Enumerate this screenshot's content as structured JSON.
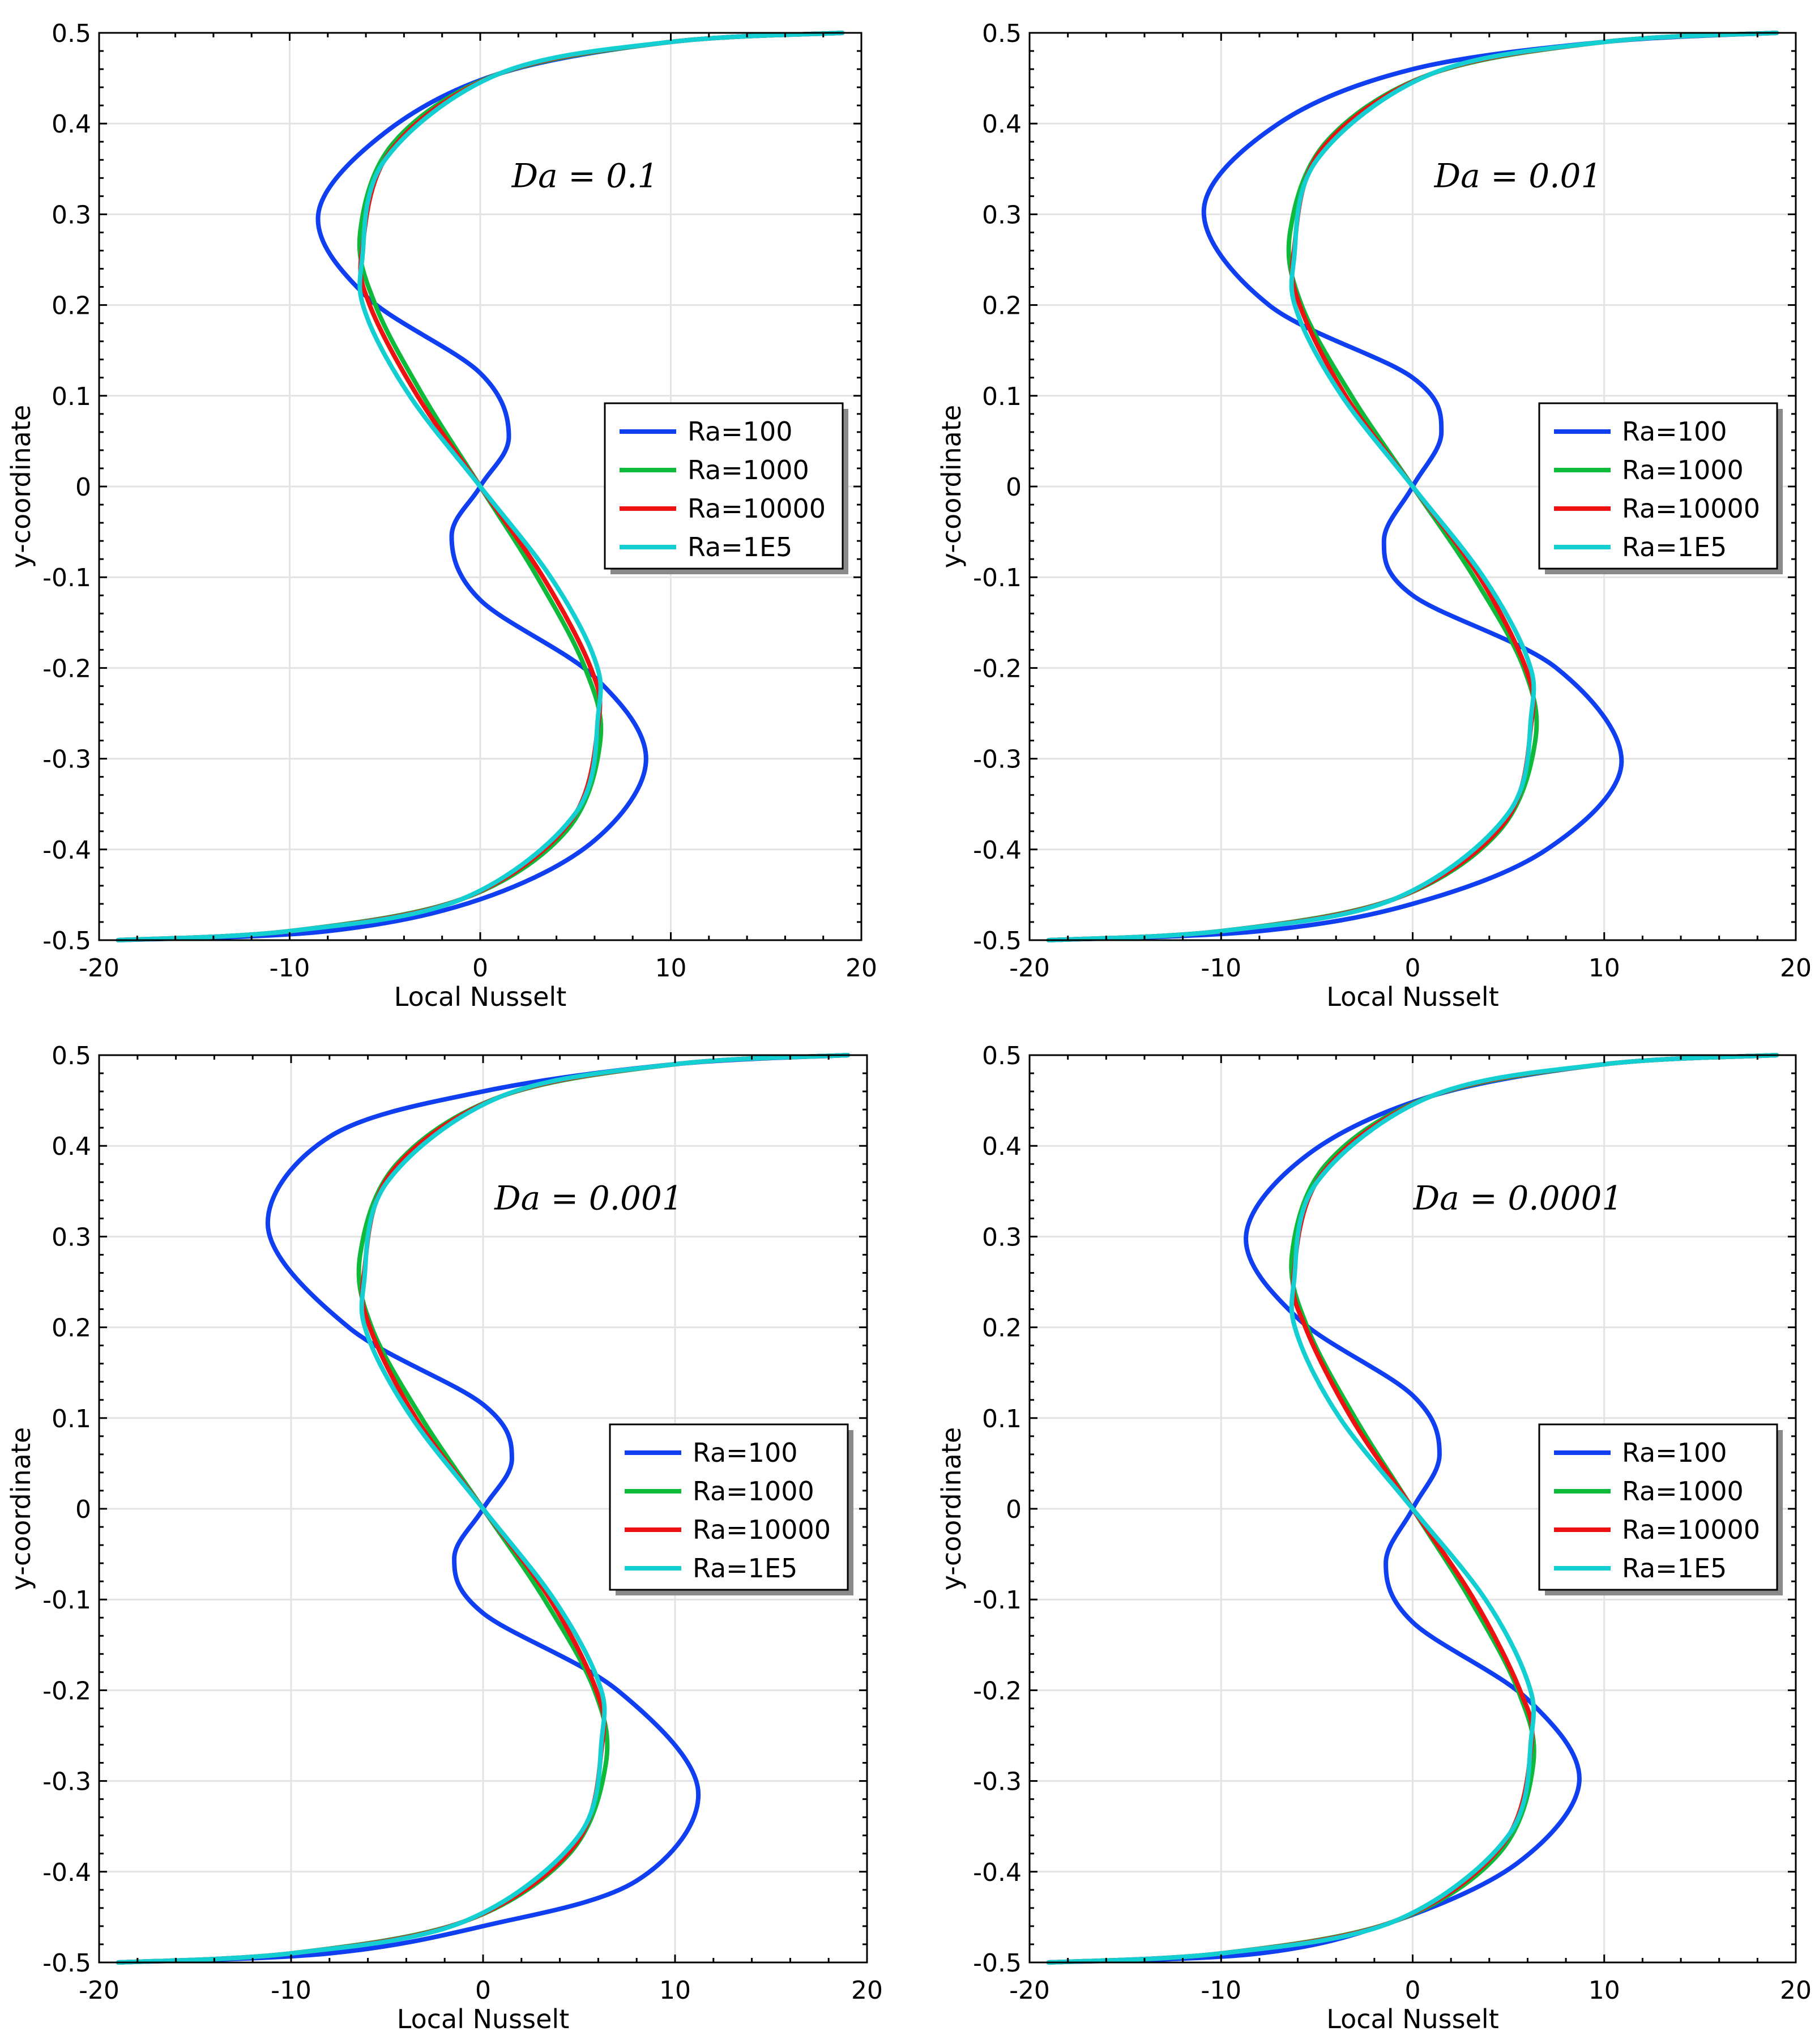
{
  "chart_data": [
    {
      "type": "line",
      "title": "",
      "annotation": "Da = 0.1",
      "xlabel": "Local Nusselt",
      "ylabel": "y-coordinate",
      "xlim": [
        -20,
        20
      ],
      "ylim": [
        -0.5,
        0.5
      ],
      "xticks": [
        "-20",
        "-10",
        "0",
        "10",
        "20"
      ],
      "yticks": [
        "0.5",
        "0.4",
        "0.3",
        "0.2",
        "0.1",
        "0",
        "-0.1",
        "-0.2",
        "-0.3",
        "-0.4",
        "-0.5"
      ],
      "grid": true,
      "legend_position": "right",
      "series": [
        {
          "name": "Ra=100",
          "color": "#0f3ff0",
          "x": [
            19,
            10,
            1,
            -5,
            -8.5,
            -6,
            0,
            1.5,
            0,
            -1.5,
            0,
            6,
            8.7,
            6,
            0,
            -8,
            -19
          ],
          "y": [
            0.5,
            0.49,
            0.455,
            0.39,
            0.3,
            0.21,
            0.125,
            0.055,
            0,
            -0.055,
            -0.125,
            -0.21,
            -0.3,
            -0.39,
            -0.455,
            -0.49,
            -0.5
          ]
        },
        {
          "name": "Ra=1000",
          "color": "#0dba3a",
          "x": [
            19,
            10,
            1,
            -4.5,
            -6.3,
            -5.5,
            -3,
            0,
            3,
            5.5,
            6.3,
            4.5,
            -1,
            -10,
            -19
          ],
          "y": [
            0.5,
            0.49,
            0.455,
            0.38,
            0.28,
            0.2,
            0.1,
            0,
            -0.1,
            -0.2,
            -0.28,
            -0.38,
            -0.455,
            -0.49,
            -0.5
          ]
        },
        {
          "name": "Ra=10000",
          "color": "#ee1111",
          "x": [
            19,
            10,
            1,
            -4.7,
            -6.2,
            -5.8,
            -3.3,
            0,
            3.3,
            5.8,
            6.2,
            4.7,
            -1,
            -10,
            -19
          ],
          "y": [
            0.5,
            0.49,
            0.455,
            0.37,
            0.26,
            0.2,
            0.1,
            0,
            -0.1,
            -0.2,
            -0.26,
            -0.37,
            -0.455,
            -0.49,
            -0.5
          ]
        },
        {
          "name": "Ra=1E5",
          "color": "#13cfd2",
          "x": [
            19,
            10,
            1,
            -5,
            -6.2,
            -6,
            -3.7,
            0,
            3.7,
            6,
            6.2,
            5,
            -1,
            -10,
            -19
          ],
          "y": [
            0.5,
            0.49,
            0.455,
            0.36,
            0.25,
            0.19,
            0.1,
            0,
            -0.1,
            -0.19,
            -0.25,
            -0.36,
            -0.455,
            -0.49,
            -0.5
          ]
        }
      ]
    },
    {
      "type": "line",
      "title": "",
      "annotation": "Da = 0.01",
      "xlabel": "Local Nusselt",
      "ylabel": "y-coordinate",
      "xlim": [
        -20,
        20
      ],
      "ylim": [
        -0.5,
        0.5
      ],
      "xticks": [
        "-20",
        "-10",
        "0",
        "10",
        "20"
      ],
      "yticks": [
        "0.5",
        "0.4",
        "0.3",
        "0.2",
        "0.1",
        "0",
        "-0.1",
        "-0.2",
        "-0.3",
        "-0.4",
        "-0.5"
      ],
      "grid": true,
      "legend_position": "right",
      "series": [
        {
          "name": "Ra=100",
          "color": "#0f3ff0",
          "x": [
            19,
            10,
            0,
            -7,
            -10.9,
            -7.5,
            0,
            1.5,
            0,
            -1.5,
            0,
            7.5,
            10.9,
            7,
            0,
            -8,
            -19
          ],
          "y": [
            0.5,
            0.49,
            0.46,
            0.4,
            0.305,
            0.2,
            0.12,
            0.06,
            0,
            -0.06,
            -0.12,
            -0.2,
            -0.305,
            -0.4,
            -0.46,
            -0.49,
            -0.5
          ]
        },
        {
          "name": "Ra=1000",
          "color": "#0dba3a",
          "x": [
            19,
            10,
            1,
            -4.5,
            -6.4,
            -5.8,
            -3.2,
            0,
            3.2,
            5.8,
            6.4,
            4.5,
            -1,
            -10,
            -19
          ],
          "y": [
            0.5,
            0.49,
            0.455,
            0.38,
            0.28,
            0.2,
            0.1,
            0,
            -0.1,
            -0.2,
            -0.28,
            -0.38,
            -0.455,
            -0.49,
            -0.5
          ]
        },
        {
          "name": "Ra=10000",
          "color": "#ee1111",
          "x": [
            19,
            10,
            1,
            -4.8,
            -6.2,
            -5.9,
            -3.5,
            0,
            3.5,
            5.9,
            6.2,
            4.8,
            -1,
            -10,
            -19
          ],
          "y": [
            0.5,
            0.49,
            0.455,
            0.37,
            0.26,
            0.2,
            0.1,
            0,
            -0.1,
            -0.2,
            -0.26,
            -0.37,
            -0.455,
            -0.49,
            -0.5
          ]
        },
        {
          "name": "Ra=1E5",
          "color": "#13cfd2",
          "x": [
            19,
            10,
            1,
            -5,
            -6.2,
            -6,
            -3.7,
            0,
            3.7,
            6,
            6.2,
            5,
            -1,
            -10,
            -19
          ],
          "y": [
            0.5,
            0.49,
            0.455,
            0.36,
            0.25,
            0.19,
            0.1,
            0,
            -0.1,
            -0.19,
            -0.25,
            -0.36,
            -0.455,
            -0.49,
            -0.5
          ]
        }
      ]
    },
    {
      "type": "line",
      "title": "",
      "annotation": "Da = 0.001",
      "xlabel": "Local Nusselt",
      "ylabel": "y-coordinate",
      "xlim": [
        -20,
        20
      ],
      "ylim": [
        -0.5,
        0.5
      ],
      "xticks": [
        "-20",
        "-10",
        "0",
        "10",
        "20"
      ],
      "yticks": [
        "0.5",
        "0.4",
        "0.3",
        "0.2",
        "0.1",
        "0",
        "-0.1",
        "-0.2",
        "-0.3",
        "-0.4",
        "-0.5"
      ],
      "grid": true,
      "legend_position": "right",
      "series": [
        {
          "name": "Ra=100",
          "color": "#0f3ff0",
          "x": [
            19,
            10,
            0,
            -8,
            -11.2,
            -7,
            0,
            1.5,
            0,
            -1.5,
            0,
            7,
            11.2,
            8,
            0,
            -8,
            -19
          ],
          "y": [
            0.5,
            0.49,
            0.46,
            0.41,
            0.31,
            0.2,
            0.115,
            0.055,
            0,
            -0.055,
            -0.115,
            -0.2,
            -0.31,
            -0.41,
            -0.46,
            -0.49,
            -0.5
          ]
        },
        {
          "name": "Ra=1000",
          "color": "#0dba3a",
          "x": [
            19,
            10,
            1,
            -4.5,
            -6.4,
            -5.8,
            -3.2,
            0,
            3.2,
            5.8,
            6.4,
            4.5,
            -1,
            -10,
            -19
          ],
          "y": [
            0.5,
            0.49,
            0.455,
            0.38,
            0.28,
            0.2,
            0.1,
            0,
            -0.1,
            -0.2,
            -0.28,
            -0.38,
            -0.455,
            -0.49,
            -0.5
          ]
        },
        {
          "name": "Ra=10000",
          "color": "#ee1111",
          "x": [
            19,
            10,
            1,
            -4.8,
            -6.2,
            -5.9,
            -3.5,
            0,
            3.5,
            5.9,
            6.2,
            4.8,
            -1,
            -10,
            -19
          ],
          "y": [
            0.5,
            0.49,
            0.455,
            0.37,
            0.26,
            0.2,
            0.1,
            0,
            -0.1,
            -0.2,
            -0.26,
            -0.37,
            -0.455,
            -0.49,
            -0.5
          ]
        },
        {
          "name": "Ra=1E5",
          "color": "#13cfd2",
          "x": [
            19,
            10,
            1,
            -5,
            -6.2,
            -6,
            -3.7,
            0,
            3.7,
            6,
            6.2,
            5,
            -1,
            -10,
            -19
          ],
          "y": [
            0.5,
            0.49,
            0.455,
            0.36,
            0.25,
            0.19,
            0.1,
            0,
            -0.1,
            -0.19,
            -0.25,
            -0.36,
            -0.455,
            -0.49,
            -0.5
          ]
        }
      ]
    },
    {
      "type": "line",
      "title": "",
      "annotation": "Da = 0.0001",
      "xlabel": "Local Nusselt",
      "ylabel": "y-coordinate",
      "xlim": [
        -20,
        20
      ],
      "ylim": [
        -0.5,
        0.5
      ],
      "xticks": [
        "-20",
        "-10",
        "0",
        "10",
        "20"
      ],
      "yticks": [
        "0.5",
        "0.4",
        "0.3",
        "0.2",
        "0.1",
        "0",
        "-0.1",
        "-0.2",
        "-0.3",
        "-0.4",
        "-0.5"
      ],
      "grid": true,
      "legend_position": "right",
      "series": [
        {
          "name": "Ra=100",
          "color": "#0f3ff0",
          "x": [
            19,
            10,
            1,
            -5.5,
            -8.7,
            -6,
            0,
            1.4,
            0,
            -1.4,
            0,
            6,
            8.7,
            5.5,
            -1,
            -8,
            -19
          ],
          "y": [
            0.5,
            0.49,
            0.455,
            0.39,
            0.3,
            0.21,
            0.125,
            0.06,
            0,
            -0.06,
            -0.125,
            -0.21,
            -0.3,
            -0.39,
            -0.455,
            -0.49,
            -0.5
          ]
        },
        {
          "name": "Ra=1000",
          "color": "#0dba3a",
          "x": [
            19,
            10,
            1,
            -4.5,
            -6.3,
            -5.5,
            -3,
            0,
            3,
            5.5,
            6.3,
            4.5,
            -1,
            -10,
            -19
          ],
          "y": [
            0.5,
            0.49,
            0.455,
            0.38,
            0.28,
            0.2,
            0.1,
            0,
            -0.1,
            -0.2,
            -0.28,
            -0.38,
            -0.455,
            -0.49,
            -0.5
          ]
        },
        {
          "name": "Ra=10000",
          "color": "#ee1111",
          "x": [
            19,
            10,
            1,
            -4.7,
            -6.2,
            -5.6,
            -3.2,
            0,
            3.2,
            5.6,
            6.2,
            4.7,
            -1,
            -10,
            -19
          ],
          "y": [
            0.5,
            0.49,
            0.455,
            0.37,
            0.26,
            0.2,
            0.1,
            0,
            -0.1,
            -0.2,
            -0.26,
            -0.37,
            -0.455,
            -0.49,
            -0.5
          ]
        },
        {
          "name": "Ra=1E5",
          "color": "#13cfd2",
          "x": [
            19,
            10,
            1,
            -5,
            -6.2,
            -6,
            -3.8,
            0,
            3.8,
            6,
            6.2,
            5,
            -1,
            -10,
            -19
          ],
          "y": [
            0.5,
            0.49,
            0.455,
            0.36,
            0.25,
            0.19,
            0.1,
            0,
            -0.1,
            -0.19,
            -0.25,
            -0.36,
            -0.455,
            -0.49,
            -0.5
          ]
        }
      ]
    }
  ]
}
